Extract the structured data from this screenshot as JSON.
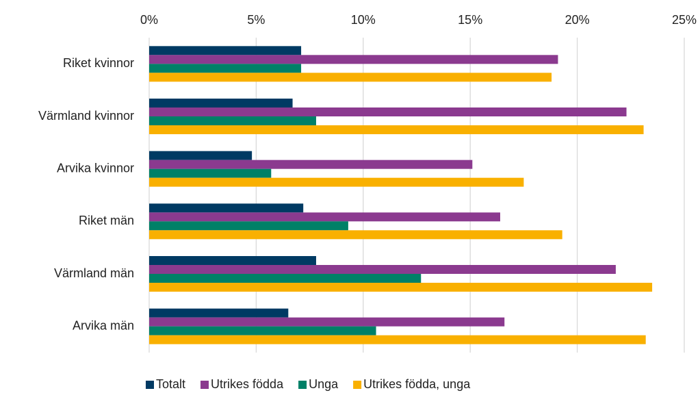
{
  "chart_data": {
    "type": "hbar",
    "categories": [
      "Riket kvinnor",
      "Värmland kvinnor",
      "Arvika kvinnor",
      "Riket män",
      "Värmland män",
      "Arvika män"
    ],
    "series": [
      {
        "name": "Totalt",
        "color": "#003a63",
        "values": [
          7.1,
          6.7,
          4.8,
          7.2,
          7.8,
          6.5
        ]
      },
      {
        "name": "Utrikes födda",
        "color": "#8b3a8f",
        "values": [
          19.1,
          22.3,
          15.1,
          16.4,
          21.8,
          16.6
        ]
      },
      {
        "name": "Unga",
        "color": "#008067",
        "values": [
          7.1,
          7.8,
          5.7,
          9.3,
          12.7,
          10.6
        ]
      },
      {
        "name": "Utrikes födda, unga",
        "color": "#f9b000",
        "values": [
          18.8,
          23.1,
          17.5,
          19.3,
          23.5,
          23.2
        ]
      }
    ],
    "xlim": [
      0,
      25
    ],
    "xticks": [
      {
        "value": 0,
        "label": "0%"
      },
      {
        "value": 5,
        "label": "5%"
      },
      {
        "value": 10,
        "label": "10%"
      },
      {
        "value": 15,
        "label": "15%"
      },
      {
        "value": 20,
        "label": "20%"
      },
      {
        "value": 25,
        "label": "25%"
      }
    ],
    "grid": true,
    "legend": "bottom"
  }
}
